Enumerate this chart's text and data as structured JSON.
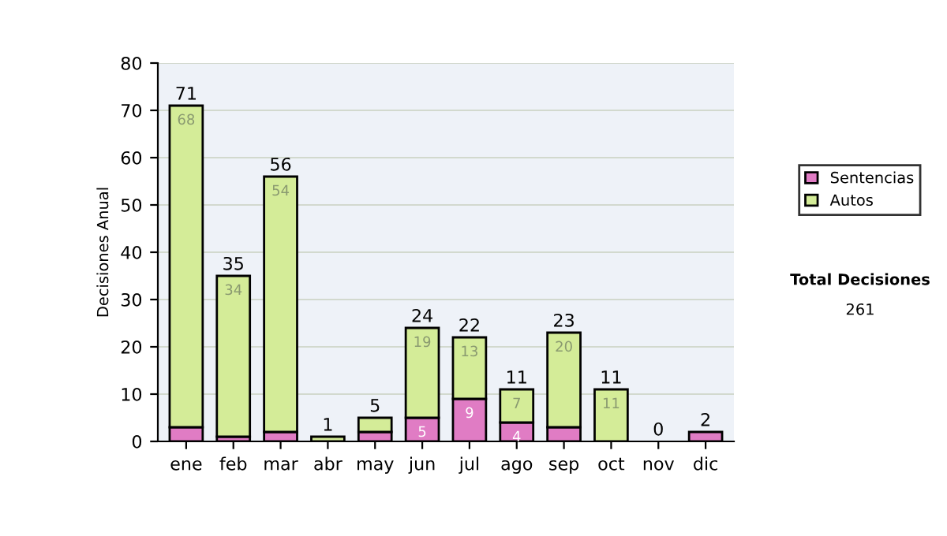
{
  "chart_data": {
    "type": "bar",
    "stacked": true,
    "ylabel": "Decisiones Anual",
    "categories": [
      "ene",
      "feb",
      "mar",
      "abr",
      "may",
      "jun",
      "jul",
      "ago",
      "sep",
      "oct",
      "nov",
      "dic"
    ],
    "series": [
      {
        "name": "Sentencias",
        "color": "#e07cc4",
        "values": [
          3,
          1,
          2,
          0,
          2,
          5,
          9,
          4,
          3,
          0,
          0,
          2
        ],
        "value_labels": [
          null,
          null,
          null,
          null,
          null,
          "5",
          "9",
          "4",
          null,
          null,
          null,
          null
        ]
      },
      {
        "name": "Autos",
        "color": "#d4ec98",
        "values": [
          68,
          34,
          54,
          1,
          3,
          19,
          13,
          7,
          20,
          11,
          0,
          0
        ],
        "value_labels": [
          "68",
          "34",
          "54",
          null,
          null,
          "19",
          "13",
          "7",
          "20",
          "11",
          null,
          null
        ]
      }
    ],
    "totals": [
      "71",
      "35",
      "56",
      "1",
      "5",
      "24",
      "22",
      "11",
      "23",
      "11",
      "0",
      "2"
    ],
    "ylim": [
      0,
      80
    ],
    "yticks": [
      0,
      10,
      20,
      30,
      40,
      50,
      60,
      70,
      80
    ],
    "grid": "y",
    "legend": "right",
    "annotations": [
      "Total Decisiones",
      "261"
    ]
  }
}
